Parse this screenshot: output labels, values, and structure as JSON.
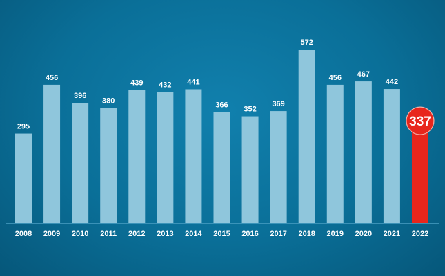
{
  "chart_data": {
    "type": "bar",
    "categories": [
      "2008",
      "2009",
      "2010",
      "2011",
      "2012",
      "2013",
      "2014",
      "2015",
      "2016",
      "2017",
      "2018",
      "2019",
      "2020",
      "2021",
      "2022"
    ],
    "values": [
      295,
      456,
      396,
      380,
      439,
      432,
      441,
      366,
      352,
      369,
      572,
      456,
      467,
      442,
      337
    ],
    "highlight_category": "2022",
    "ylim": [
      0,
      572
    ],
    "grid": false,
    "colors": {
      "bar": "#8fc6dc",
      "highlight": "#e8261c",
      "label": "#ffffff",
      "background": "#0a6f98",
      "baseline": "#4a9fc4"
    }
  }
}
